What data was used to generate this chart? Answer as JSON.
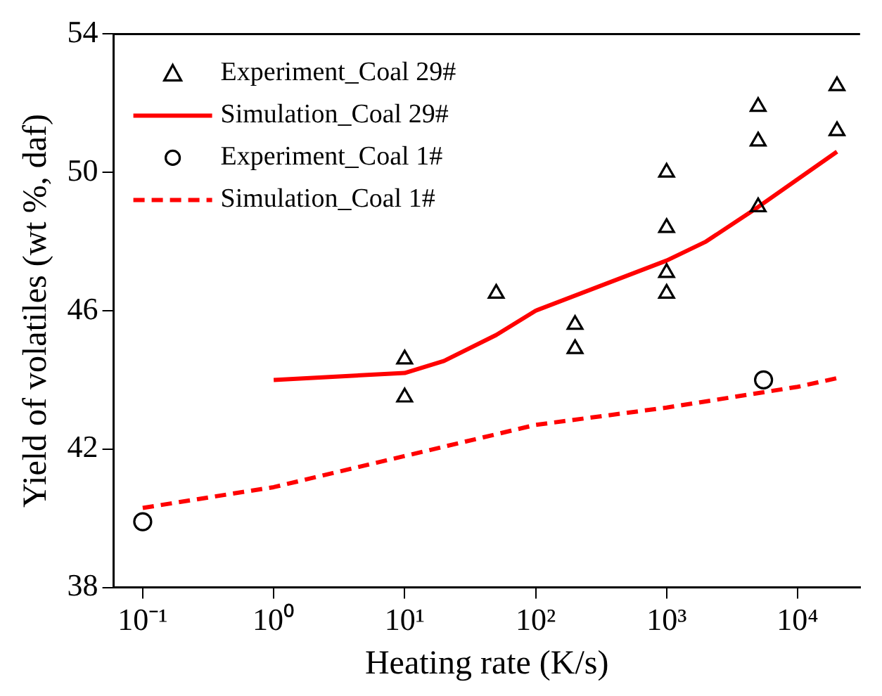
{
  "chart_data": {
    "type": "scatter",
    "xlabel": "Heating rate (K/s)",
    "ylabel": "Yield of volatiles (wt %, daf)",
    "log": "x",
    "xlim": [
      0.06,
      30000
    ],
    "xticks": [
      {
        "value": 0.1,
        "label": "10⁻¹"
      },
      {
        "value": 1,
        "label": "10⁰"
      },
      {
        "value": 10,
        "label": "10¹"
      },
      {
        "value": 100,
        "label": "10²"
      },
      {
        "value": 1000,
        "label": "10³"
      },
      {
        "value": 10000,
        "label": "10⁴"
      }
    ],
    "ylim": [
      38,
      54
    ],
    "yticks": [
      38,
      42,
      46,
      50,
      54
    ],
    "grid": false,
    "legend": "top left",
    "series": [
      {
        "name": "Experiment_Coal 29#",
        "type": "scatter",
        "marker": "triangle",
        "color": "#000000",
        "x": [
          10,
          10,
          50,
          200,
          200,
          1000,
          1000,
          1000,
          1000,
          5000,
          5000,
          5000,
          20000,
          20000
        ],
        "values": [
          44.6,
          43.5,
          46.5,
          45.6,
          44.9,
          50.0,
          48.4,
          47.1,
          46.5,
          51.9,
          50.9,
          49.0,
          52.5,
          51.2
        ]
      },
      {
        "name": "Simulation_Coal 29#",
        "type": "line",
        "marker": "none",
        "line_style": "solid",
        "color": "#ff0000",
        "x": [
          1,
          10,
          20,
          50,
          100,
          1000,
          2000,
          5000,
          20000
        ],
        "values": [
          44.0,
          44.2,
          44.55,
          45.3,
          46.0,
          47.45,
          48.0,
          49.0,
          50.6
        ]
      },
      {
        "name": "Experiment_Coal 1#",
        "type": "scatter",
        "marker": "circle",
        "color": "#000000",
        "x": [
          0.1,
          5500
        ],
        "values": [
          39.9,
          44.0
        ]
      },
      {
        "name": "Simulation_Coal 1#",
        "type": "line",
        "marker": "none",
        "line_style": "dashed",
        "color": "#ff0000",
        "x": [
          0.1,
          1,
          10,
          100,
          1000,
          10000,
          20000
        ],
        "values": [
          40.3,
          40.9,
          41.8,
          42.7,
          43.2,
          43.8,
          44.05
        ]
      }
    ]
  }
}
